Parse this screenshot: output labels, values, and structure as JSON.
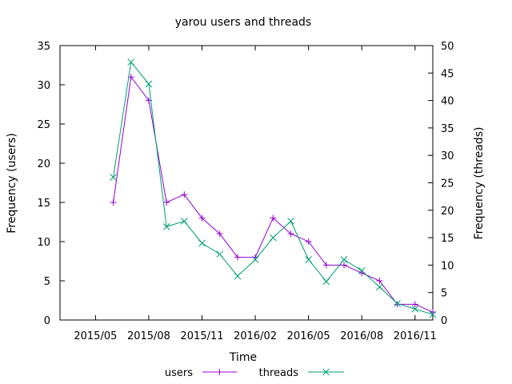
{
  "chart_data": {
    "type": "line",
    "title": "yarou users and threads",
    "xlabel": "Time",
    "ylabel": "Frequency (users)",
    "y2label": "Frequency (threads)",
    "x_ticks": [
      "2015/05",
      "2015/08",
      "2015/11",
      "2016/02",
      "2016/05",
      "2016/08",
      "2016/11"
    ],
    "x": [
      "2015/06",
      "2015/07",
      "2015/08",
      "2015/09",
      "2015/10",
      "2015/11",
      "2015/12",
      "2016/01",
      "2016/02",
      "2016/03",
      "2016/04",
      "2016/05",
      "2016/06",
      "2016/07",
      "2016/08",
      "2016/09",
      "2016/10",
      "2016/11",
      "2016/12"
    ],
    "ylim": [
      0,
      35
    ],
    "y_ticks": [
      "0",
      "5",
      "10",
      "15",
      "20",
      "25",
      "30",
      "35"
    ],
    "y2lim": [
      0,
      50
    ],
    "y2_ticks": [
      "0",
      "5",
      "10",
      "15",
      "20",
      "25",
      "30",
      "35",
      "40",
      "45",
      "50"
    ],
    "grid": false,
    "legend_position": "bottom",
    "series": [
      {
        "name": "users",
        "axis": "left",
        "marker": "plus",
        "color": "#9400d3",
        "values": [
          15,
          31,
          28,
          15,
          16,
          13,
          11,
          8,
          8,
          13,
          11,
          10,
          7,
          7,
          6,
          5,
          2,
          2,
          1
        ]
      },
      {
        "name": "threads",
        "axis": "right",
        "marker": "cross",
        "color": "#009e73",
        "values": [
          26,
          47,
          43,
          17,
          18,
          14,
          12,
          8,
          11,
          15,
          18,
          11,
          7,
          11,
          9,
          6,
          3,
          2,
          1
        ]
      }
    ]
  }
}
